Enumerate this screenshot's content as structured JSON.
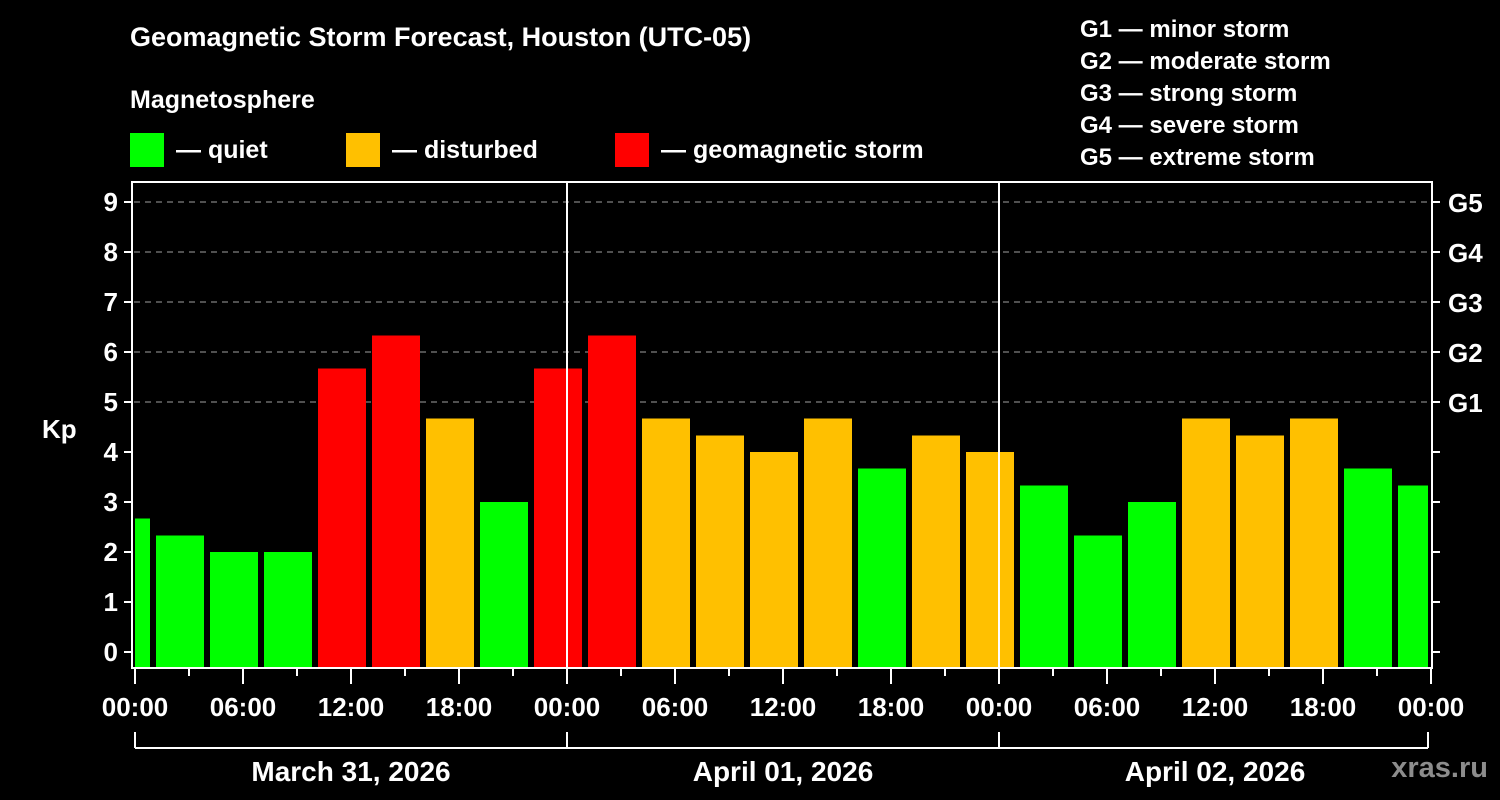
{
  "header": {
    "title": "Geomagnetic Storm Forecast, Houston (UTC-05)",
    "subtitle": "Magnetosphere"
  },
  "legend": [
    {
      "label": "— quiet",
      "color": "#00ff00"
    },
    {
      "label": "— disturbed",
      "color": "#ffc000"
    },
    {
      "label": "— geomagnetic storm",
      "color": "#ff0000"
    }
  ],
  "gscale": [
    "G1 — minor storm",
    "G2 — moderate storm",
    "G3 — strong storm",
    "G4 — severe storm",
    "G5 — extreme storm"
  ],
  "watermark": "xras.ru",
  "colors": {
    "quiet": "#00ff00",
    "disturbed": "#ffc000",
    "storm": "#ff0000",
    "axis": "#ffffff",
    "grid": "#808080",
    "background": "#000000"
  },
  "chart_data": {
    "type": "bar",
    "title": "Geomagnetic Storm Forecast, Houston (UTC-05)",
    "xlabel": "",
    "ylabel": "Kp",
    "ylim": [
      0,
      9
    ],
    "y_ticks": [
      0,
      1,
      2,
      3,
      4,
      5,
      6,
      7,
      8,
      9
    ],
    "right_axis_ticks": [
      {
        "kp": 5,
        "label": "G1"
      },
      {
        "kp": 6,
        "label": "G2"
      },
      {
        "kp": 7,
        "label": "G3"
      },
      {
        "kp": 8,
        "label": "G4"
      },
      {
        "kp": 9,
        "label": "G5"
      }
    ],
    "grid": "horizontal dashed at Kp 5-9",
    "x_tick_labels": [
      "00:00",
      "06:00",
      "12:00",
      "18:00",
      "00:00",
      "06:00",
      "12:00",
      "18:00",
      "00:00",
      "06:00",
      "12:00",
      "18:00",
      "00:00"
    ],
    "dates": [
      "March 31, 2026",
      "April 01, 2026",
      "April 02, 2026"
    ],
    "bar_interval_hours": 3,
    "series": [
      {
        "name": "Kp",
        "values": [
          2.67,
          2.33,
          2.0,
          2.0,
          5.67,
          6.33,
          4.67,
          3.0,
          5.67,
          6.33,
          4.67,
          4.33,
          4.0,
          4.67,
          3.67,
          4.33,
          4.0,
          3.33,
          2.33,
          3.0,
          4.67,
          4.33,
          4.67,
          3.67,
          3.33
        ],
        "levels": [
          "quiet",
          "quiet",
          "quiet",
          "quiet",
          "storm",
          "storm",
          "disturbed",
          "quiet",
          "storm",
          "storm",
          "disturbed",
          "disturbed",
          "disturbed",
          "disturbed",
          "quiet",
          "disturbed",
          "disturbed",
          "quiet",
          "quiet",
          "quiet",
          "disturbed",
          "disturbed",
          "disturbed",
          "quiet",
          "quiet"
        ]
      }
    ]
  }
}
